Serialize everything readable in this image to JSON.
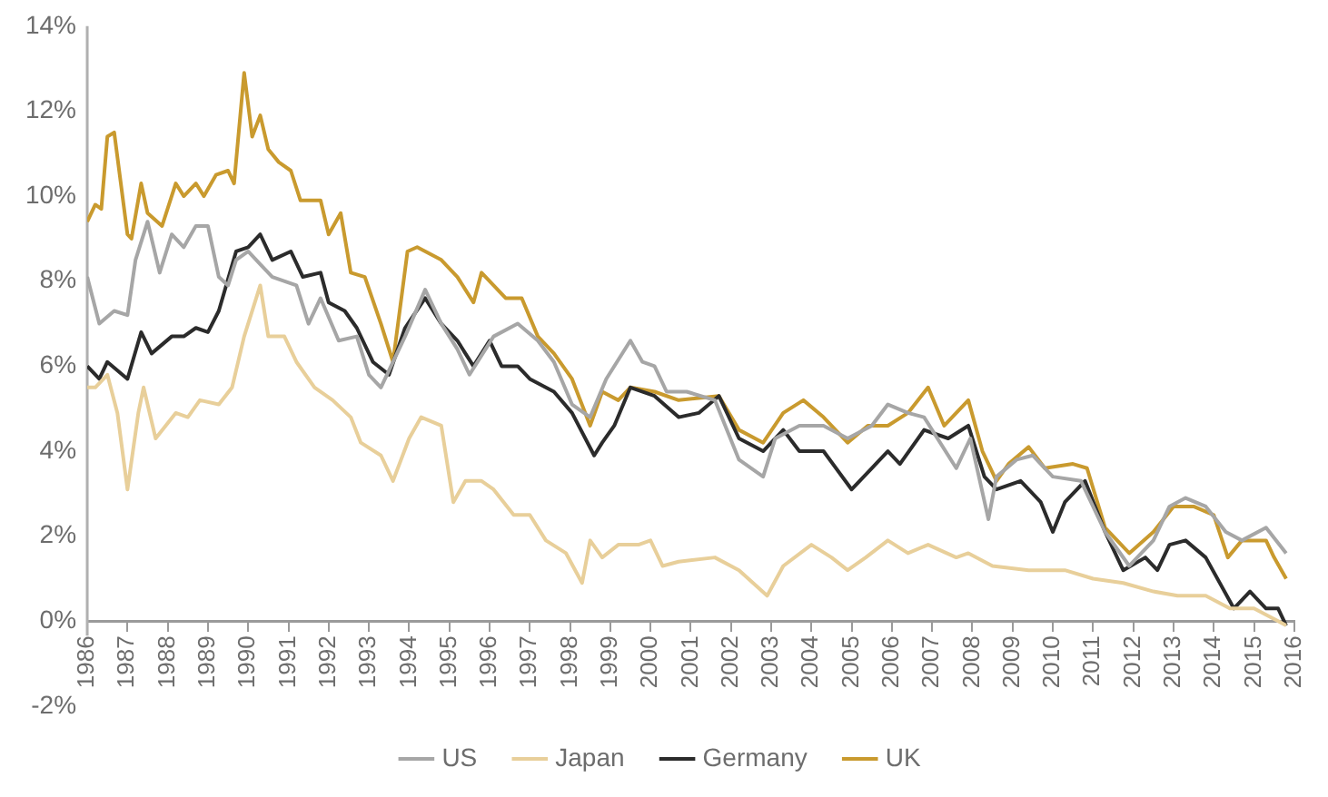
{
  "chart_data": {
    "type": "line",
    "xlim": [
      1986,
      2016
    ],
    "xticks": [
      1986,
      1987,
      1988,
      1989,
      1990,
      1991,
      1992,
      1993,
      1994,
      1995,
      1996,
      1997,
      1998,
      1999,
      2000,
      2001,
      2002,
      2003,
      2004,
      2005,
      2006,
      2007,
      2008,
      2009,
      2010,
      2011,
      2012,
      2013,
      2014,
      2015,
      2016
    ],
    "ylim": [
      -2,
      14
    ],
    "yticks": [
      {
        "value": -2,
        "label": "-2%"
      },
      {
        "value": 0,
        "label": "0%"
      },
      {
        "value": 2,
        "label": "2%"
      },
      {
        "value": 4,
        "label": "4%"
      },
      {
        "value": 6,
        "label": "6%"
      },
      {
        "value": 8,
        "label": "8%"
      },
      {
        "value": 10,
        "label": "10%"
      },
      {
        "value": 12,
        "label": "12%"
      },
      {
        "value": 14,
        "label": "14%"
      }
    ],
    "grid": false,
    "legend": "bottom",
    "marker": "none",
    "line_style": "solid",
    "series": [
      {
        "name": "US",
        "color": "#a6a6a6",
        "x": [
          1986.0,
          1986.3,
          1986.67,
          1987.0,
          1987.2,
          1987.5,
          1987.8,
          1988.1,
          1988.4,
          1988.7,
          1989.0,
          1989.27,
          1989.5,
          1989.7,
          1990.0,
          1990.3,
          1990.6,
          1991.2,
          1991.5,
          1991.8,
          1992.25,
          1992.7,
          1993.0,
          1993.3,
          1993.9,
          1994.4,
          1994.8,
          1995.2,
          1995.5,
          1996.1,
          1996.7,
          1997.2,
          1997.6,
          1998.05,
          1998.5,
          1998.9,
          1999.5,
          1999.8,
          2000.1,
          2000.4,
          2000.9,
          2001.6,
          2002.2,
          2002.8,
          2003.1,
          2003.7,
          2004.3,
          2004.9,
          2005.5,
          2005.9,
          2006.4,
          2006.8,
          2007.6,
          2007.95,
          2008.4,
          2008.6,
          2009.1,
          2009.5,
          2010.0,
          2010.7,
          2011.3,
          2011.9,
          2012.5,
          2012.9,
          2013.3,
          2013.8,
          2014.3,
          2014.7,
          2015.3,
          2015.8
        ],
        "values": [
          8.1,
          7.0,
          7.3,
          7.2,
          8.5,
          9.4,
          8.2,
          9.1,
          8.8,
          9.3,
          9.3,
          8.1,
          7.9,
          8.5,
          8.7,
          8.4,
          8.1,
          7.9,
          7.0,
          7.6,
          6.6,
          6.7,
          5.8,
          5.5,
          6.7,
          7.8,
          7.0,
          6.4,
          5.8,
          6.7,
          7.0,
          6.6,
          6.1,
          5.1,
          4.8,
          5.7,
          6.6,
          6.1,
          6.0,
          5.4,
          5.4,
          5.2,
          3.8,
          3.4,
          4.3,
          4.6,
          4.6,
          4.3,
          4.6,
          5.1,
          4.9,
          4.8,
          3.6,
          4.3,
          2.4,
          3.4,
          3.8,
          3.9,
          3.4,
          3.3,
          2.1,
          1.3,
          1.9,
          2.7,
          2.9,
          2.7,
          2.1,
          1.9,
          2.2,
          1.6
        ]
      },
      {
        "name": "Japan",
        "color": "#e8cf9a",
        "x": [
          1986.0,
          1986.2,
          1986.5,
          1986.75,
          1987.0,
          1987.27,
          1987.4,
          1987.7,
          1988.2,
          1988.5,
          1988.8,
          1989.27,
          1989.6,
          1989.9,
          1990.3,
          1990.5,
          1990.9,
          1991.2,
          1991.65,
          1992.1,
          1992.55,
          1992.8,
          1993.3,
          1993.6,
          1994.0,
          1994.3,
          1994.8,
          1995.1,
          1995.4,
          1995.8,
          1996.1,
          1996.6,
          1997.0,
          1997.4,
          1997.9,
          1998.3,
          1998.5,
          1998.8,
          1999.2,
          1999.7,
          2000.0,
          2000.3,
          2000.7,
          2001.6,
          2002.2,
          2002.9,
          2003.3,
          2004.0,
          2004.5,
          2004.9,
          2005.35,
          2005.9,
          2006.4,
          2006.9,
          2007.6,
          2007.9,
          2008.5,
          2009.4,
          2010.3,
          2011.0,
          2011.75,
          2012.5,
          2013.1,
          2013.8,
          2014.4,
          2015.0,
          2015.6,
          2015.8
        ],
        "values": [
          5.5,
          5.5,
          5.8,
          4.9,
          3.1,
          4.9,
          5.5,
          4.3,
          4.9,
          4.8,
          5.2,
          5.1,
          5.5,
          6.7,
          7.9,
          6.7,
          6.7,
          6.1,
          5.5,
          5.2,
          4.8,
          4.2,
          3.9,
          3.3,
          4.3,
          4.8,
          4.6,
          2.8,
          3.3,
          3.3,
          3.1,
          2.5,
          2.5,
          1.9,
          1.6,
          0.9,
          1.9,
          1.5,
          1.8,
          1.8,
          1.9,
          1.3,
          1.4,
          1.5,
          1.2,
          0.6,
          1.3,
          1.8,
          1.5,
          1.2,
          1.5,
          1.9,
          1.6,
          1.8,
          1.5,
          1.6,
          1.3,
          1.2,
          1.2,
          1.0,
          0.9,
          0.7,
          0.6,
          0.6,
          0.3,
          0.3,
          0.0,
          -0.1
        ]
      },
      {
        "name": "Germany",
        "color": "#2b2b2b",
        "x": [
          1986.0,
          1986.3,
          1986.5,
          1987.0,
          1987.34,
          1987.6,
          1988.1,
          1988.4,
          1988.7,
          1989.0,
          1989.27,
          1989.7,
          1990.0,
          1990.3,
          1990.6,
          1991.06,
          1991.36,
          1991.8,
          1992.0,
          1992.4,
          1992.7,
          1993.1,
          1993.5,
          1993.9,
          1994.4,
          1994.8,
          1995.2,
          1995.6,
          1996.0,
          1996.3,
          1996.7,
          1997.0,
          1997.6,
          1998.05,
          1998.6,
          1998.8,
          1999.1,
          1999.5,
          2000.1,
          2000.7,
          2001.2,
          2001.7,
          2002.2,
          2002.8,
          2003.3,
          2003.7,
          2004.3,
          2005.0,
          2005.5,
          2005.9,
          2006.2,
          2006.8,
          2007.4,
          2007.9,
          2008.3,
          2008.6,
          2009.2,
          2009.7,
          2010.0,
          2010.3,
          2010.8,
          2011.3,
          2011.75,
          2012.3,
          2012.6,
          2012.9,
          2013.3,
          2013.8,
          2014.5,
          2014.9,
          2015.3,
          2015.6,
          2015.8
        ],
        "values": [
          6.0,
          5.7,
          6.1,
          5.7,
          6.8,
          6.3,
          6.7,
          6.7,
          6.9,
          6.8,
          7.3,
          8.7,
          8.8,
          9.1,
          8.5,
          8.7,
          8.1,
          8.2,
          7.5,
          7.3,
          6.9,
          6.1,
          5.8,
          6.9,
          7.6,
          7.0,
          6.6,
          6.0,
          6.6,
          6.0,
          6.0,
          5.7,
          5.4,
          4.9,
          3.9,
          4.2,
          4.6,
          5.5,
          5.3,
          4.8,
          4.9,
          5.3,
          4.3,
          4.0,
          4.5,
          4.0,
          4.0,
          3.1,
          3.6,
          4.0,
          3.7,
          4.5,
          4.3,
          4.6,
          3.4,
          3.1,
          3.3,
          2.8,
          2.1,
          2.8,
          3.3,
          2.1,
          1.2,
          1.5,
          1.2,
          1.8,
          1.9,
          1.5,
          0.3,
          0.7,
          0.3,
          0.3,
          -0.1
        ]
      },
      {
        "name": "UK",
        "color": "#c99a2e",
        "x": [
          1986.0,
          1986.2,
          1986.35,
          1986.5,
          1986.67,
          1987.0,
          1987.1,
          1987.34,
          1987.5,
          1987.86,
          1988.2,
          1988.4,
          1988.7,
          1988.9,
          1989.2,
          1989.5,
          1989.65,
          1989.9,
          1990.1,
          1990.3,
          1990.5,
          1990.76,
          1991.06,
          1991.3,
          1991.8,
          1992.0,
          1992.3,
          1992.55,
          1992.9,
          1993.3,
          1993.6,
          1993.96,
          1994.2,
          1994.8,
          1995.2,
          1995.6,
          1995.8,
          1996.4,
          1996.8,
          1997.2,
          1997.6,
          1998.05,
          1998.5,
          1998.8,
          1999.2,
          1999.5,
          2000.1,
          2000.7,
          2001.7,
          2002.2,
          2002.8,
          2003.3,
          2003.8,
          2004.3,
          2004.9,
          2005.4,
          2005.9,
          2006.4,
          2006.9,
          2007.3,
          2007.9,
          2008.25,
          2008.6,
          2008.9,
          2009.4,
          2009.8,
          2010.5,
          2010.85,
          2011.3,
          2011.9,
          2012.5,
          2013.0,
          2013.5,
          2014.0,
          2014.35,
          2014.7,
          2015.3,
          2015.5,
          2015.8
        ],
        "values": [
          9.4,
          9.8,
          9.7,
          11.4,
          11.5,
          9.1,
          9.0,
          10.3,
          9.6,
          9.3,
          10.3,
          10.0,
          10.3,
          10.0,
          10.5,
          10.6,
          10.3,
          12.9,
          11.4,
          11.9,
          11.1,
          10.8,
          10.6,
          9.9,
          9.9,
          9.1,
          9.6,
          8.2,
          8.1,
          7.0,
          6.1,
          8.7,
          8.8,
          8.5,
          8.1,
          7.5,
          8.2,
          7.6,
          7.6,
          6.7,
          6.3,
          5.7,
          4.6,
          5.4,
          5.2,
          5.5,
          5.4,
          5.2,
          5.3,
          4.5,
          4.2,
          4.9,
          5.2,
          4.8,
          4.2,
          4.6,
          4.6,
          4.9,
          5.5,
          4.6,
          5.2,
          4.0,
          3.3,
          3.7,
          4.1,
          3.6,
          3.7,
          3.6,
          2.2,
          1.6,
          2.1,
          2.7,
          2.7,
          2.5,
          1.5,
          1.9,
          1.9,
          1.5,
          1.0
        ]
      }
    ]
  }
}
